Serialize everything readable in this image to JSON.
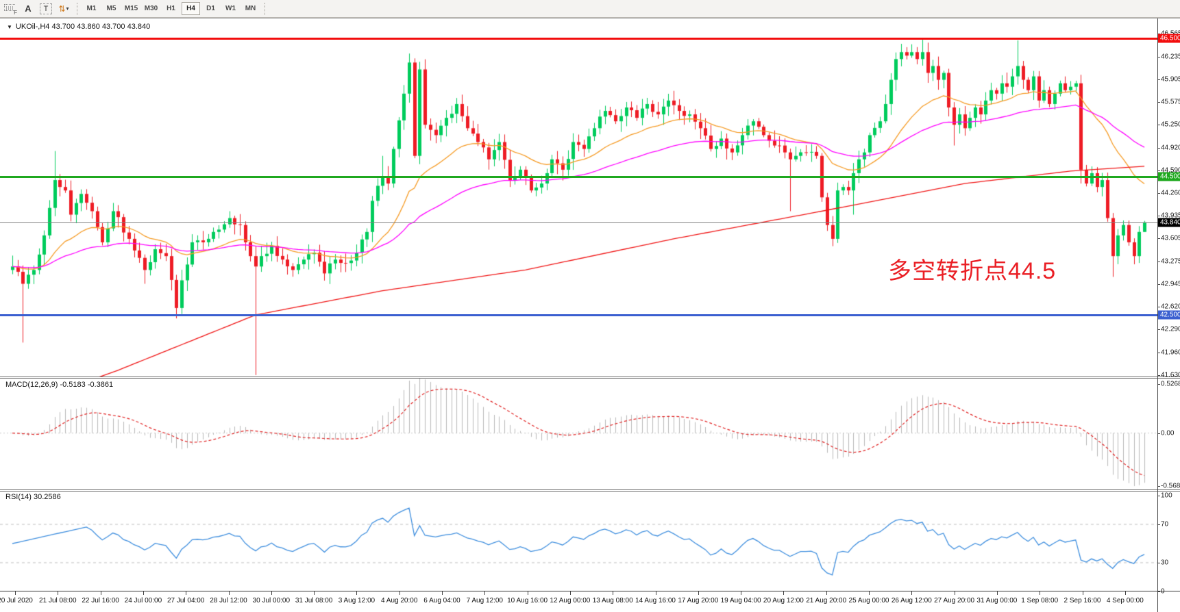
{
  "toolbar": {
    "grip_label": "F",
    "annotate_a_label": "A",
    "annotate_t_label": "T",
    "arrows_icon": "⇅",
    "caret": "▾",
    "timeframes": [
      "M1",
      "M5",
      "M15",
      "M30",
      "H1",
      "H4",
      "D1",
      "W1",
      "MN"
    ],
    "active_timeframe": "H4"
  },
  "symbol_line": {
    "triangle": "▼",
    "text": "UKOil-,H4  43.700 43.860 43.700 43.840"
  },
  "annotation": {
    "text": "多空转折点44.5",
    "color": "#EA1F25"
  },
  "macd_panel": {
    "title": "MACD(12,26,9) -0.5183 -0.3861"
  },
  "rsi_panel": {
    "title": "RSI(14) 30.2586"
  },
  "chart_data": {
    "type": "candlestick",
    "symbol": "UKOil-",
    "timeframe": "H4",
    "bars": 215,
    "ylim": [
      41.63,
      46.75
    ],
    "up_color": "#00CC5C",
    "down_color": "#EE1C25",
    "last_ohlc": {
      "open": 43.7,
      "high": 43.86,
      "low": 43.7,
      "close": 43.84
    },
    "price_axis_ticks": [
      "46.565",
      "46.235",
      "45.905",
      "45.575",
      "45.250",
      "44.920",
      "44.590",
      "44.260",
      "43.935",
      "43.605",
      "43.275",
      "42.945",
      "42.620",
      "42.290",
      "41.960",
      "41.630"
    ],
    "levels": [
      {
        "name": "resistance",
        "label": "46.500",
        "price": 46.5,
        "color": "#F20D0D",
        "thickness": 3
      },
      {
        "name": "pivot",
        "label": "44.500",
        "price": 44.5,
        "color": "#1FA81F",
        "thickness": 3
      },
      {
        "name": "support",
        "label": "42.500",
        "price": 42.5,
        "color": "#3A5FD0",
        "thickness": 3
      }
    ],
    "current_price": {
      "label": "43.840",
      "price": 43.84,
      "line_color": "#808080",
      "tag_bg": "#000000"
    },
    "moving_averages": [
      {
        "name": "ma-fast",
        "type": "ema",
        "period": 21,
        "color": "#F59A23"
      },
      {
        "name": "ma-medium",
        "type": "ema",
        "period": 55,
        "color": "#FF00FF"
      },
      {
        "name": "ma-slow",
        "type": "anchors",
        "color": "#F01515",
        "anchors": [
          [
            0,
            41.15
          ],
          [
            20,
            41.7
          ],
          [
            46,
            42.5
          ],
          [
            70,
            42.85
          ],
          [
            97,
            43.15
          ],
          [
            125,
            43.6
          ],
          [
            153,
            44.0
          ],
          [
            180,
            44.4
          ],
          [
            200,
            44.58
          ],
          [
            214,
            44.65
          ]
        ]
      }
    ],
    "price_anchors": [
      [
        0,
        43.2
      ],
      [
        2,
        42.95
      ],
      [
        4,
        43.15
      ],
      [
        6,
        43.65
      ],
      [
        8,
        44.45
      ],
      [
        10,
        44.3
      ],
      [
        11,
        43.95
      ],
      [
        13,
        44.25
      ],
      [
        15,
        44.0
      ],
      [
        17,
        43.55
      ],
      [
        19,
        44.0
      ],
      [
        22,
        43.6
      ],
      [
        25,
        43.15
      ],
      [
        27,
        43.45
      ],
      [
        29,
        43.35
      ],
      [
        31,
        42.6
      ],
      [
        32,
        43.0
      ],
      [
        34,
        43.55
      ],
      [
        36,
        43.55
      ],
      [
        38,
        43.7
      ],
      [
        41,
        43.9
      ],
      [
        43,
        43.8
      ],
      [
        44,
        43.55
      ],
      [
        45,
        43.35
      ],
      [
        46,
        43.2
      ],
      [
        47,
        43.35
      ],
      [
        49,
        43.5
      ],
      [
        51,
        43.3
      ],
      [
        53,
        43.15
      ],
      [
        55,
        43.3
      ],
      [
        57,
        43.4
      ],
      [
        59,
        43.1
      ],
      [
        61,
        43.3
      ],
      [
        63,
        43.25
      ],
      [
        65,
        43.4
      ],
      [
        67,
        43.7
      ],
      [
        68,
        44.15
      ],
      [
        70,
        44.5
      ],
      [
        71,
        44.4
      ],
      [
        72,
        44.9
      ],
      [
        74,
        45.7
      ],
      [
        75,
        46.15
      ],
      [
        76,
        44.8
      ],
      [
        77,
        46.05
      ],
      [
        78,
        45.25
      ],
      [
        80,
        45.1
      ],
      [
        82,
        45.35
      ],
      [
        84,
        45.55
      ],
      [
        86,
        45.2
      ],
      [
        88,
        45.0
      ],
      [
        90,
        44.75
      ],
      [
        92,
        45.0
      ],
      [
        94,
        44.45
      ],
      [
        96,
        44.6
      ],
      [
        98,
        44.3
      ],
      [
        100,
        44.4
      ],
      [
        102,
        44.75
      ],
      [
        104,
        44.6
      ],
      [
        106,
        45.0
      ],
      [
        108,
        44.9
      ],
      [
        110,
        45.2
      ],
      [
        112,
        45.45
      ],
      [
        114,
        45.3
      ],
      [
        116,
        45.5
      ],
      [
        118,
        45.35
      ],
      [
        120,
        45.55
      ],
      [
        122,
        45.4
      ],
      [
        124,
        45.6
      ],
      [
        126,
        45.45
      ],
      [
        128,
        45.4
      ],
      [
        130,
        45.2
      ],
      [
        132,
        44.9
      ],
      [
        134,
        45.05
      ],
      [
        136,
        44.85
      ],
      [
        138,
        45.1
      ],
      [
        140,
        45.3
      ],
      [
        142,
        45.1
      ],
      [
        144,
        44.95
      ],
      [
        146,
        44.85
      ],
      [
        147,
        44.75
      ],
      [
        148,
        44.8
      ],
      [
        150,
        44.85
      ],
      [
        152,
        44.8
      ],
      [
        153,
        44.2
      ],
      [
        154,
        43.8
      ],
      [
        155,
        43.6
      ],
      [
        156,
        44.3
      ],
      [
        157,
        44.35
      ],
      [
        158,
        44.3
      ],
      [
        159,
        44.55
      ],
      [
        160,
        44.75
      ],
      [
        161,
        44.85
      ],
      [
        162,
        45.1
      ],
      [
        164,
        45.3
      ],
      [
        165,
        45.55
      ],
      [
        166,
        45.9
      ],
      [
        167,
        46.2
      ],
      [
        168,
        46.3
      ],
      [
        169,
        46.25
      ],
      [
        170,
        46.3
      ],
      [
        171,
        46.2
      ],
      [
        172,
        46.3
      ],
      [
        173,
        46.0
      ],
      [
        174,
        46.1
      ],
      [
        175,
        45.9
      ],
      [
        176,
        46.0
      ],
      [
        177,
        45.5
      ],
      [
        178,
        45.25
      ],
      [
        179,
        45.4
      ],
      [
        180,
        45.2
      ],
      [
        181,
        45.35
      ],
      [
        182,
        45.5
      ],
      [
        183,
        45.4
      ],
      [
        184,
        45.6
      ],
      [
        185,
        45.75
      ],
      [
        186,
        45.7
      ],
      [
        187,
        45.85
      ],
      [
        188,
        45.8
      ],
      [
        189,
        45.95
      ],
      [
        190,
        46.1
      ],
      [
        191,
        45.9
      ],
      [
        192,
        45.75
      ],
      [
        193,
        45.95
      ],
      [
        194,
        45.6
      ],
      [
        195,
        45.75
      ],
      [
        196,
        45.55
      ],
      [
        197,
        45.7
      ],
      [
        198,
        45.85
      ],
      [
        199,
        45.75
      ],
      [
        200,
        45.8
      ],
      [
        201,
        45.85
      ],
      [
        202,
        44.6
      ],
      [
        203,
        44.4
      ],
      [
        204,
        44.55
      ],
      [
        205,
        44.35
      ],
      [
        206,
        44.45
      ],
      [
        207,
        43.9
      ],
      [
        208,
        43.35
      ],
      [
        209,
        43.65
      ],
      [
        210,
        43.8
      ],
      [
        211,
        43.55
      ],
      [
        212,
        43.35
      ],
      [
        213,
        43.7
      ],
      [
        214,
        43.84
      ]
    ],
    "extra_wicks": {
      "2": [
        null,
        42.1
      ],
      "8": [
        44.87,
        null
      ],
      "25": [
        null,
        42.95
      ],
      "31": [
        null,
        42.45
      ],
      "46": [
        null,
        41.63
      ],
      "70": [
        44.8,
        null
      ],
      "75": [
        46.28,
        null
      ],
      "147": [
        null,
        44.0
      ],
      "159": [
        null,
        43.95
      ],
      "172": [
        46.48,
        null
      ],
      "178": [
        null,
        44.95
      ],
      "190": [
        46.47,
        null
      ],
      "202": [
        null,
        44.4
      ],
      "208": [
        null,
        43.05
      ]
    },
    "time_axis_labels": [
      "20 Jul 2020",
      "21 Jul 08:00",
      "22 Jul 16:00",
      "24 Jul 00:00",
      "27 Jul 04:00",
      "28 Jul 12:00",
      "30 Jul 00:00",
      "31 Jul 08:00",
      "3 Aug 12:00",
      "4 Aug 20:00",
      "6 Aug 04:00",
      "7 Aug 12:00",
      "10 Aug 16:00",
      "12 Aug 00:00",
      "13 Aug 08:00",
      "14 Aug 16:00",
      "17 Aug 20:00",
      "19 Aug 04:00",
      "20 Aug 12:00",
      "21 Aug 20:00",
      "25 Aug 00:00",
      "26 Aug 12:00",
      "27 Aug 20:00",
      "31 Aug 00:00",
      "1 Sep 08:00",
      "2 Sep 16:00",
      "4 Sep 00:00"
    ],
    "macd": {
      "fast": 12,
      "slow": 26,
      "signal": 9,
      "value_main": -0.5183,
      "value_signal": -0.3861,
      "ylim": [
        -0.5681,
        0.5268
      ],
      "ticks": [
        {
          "label": "0.5268",
          "v": 0.5268
        },
        {
          "label": "0.00",
          "v": 0
        },
        {
          "label": "-0.5681",
          "v": -0.5681
        }
      ],
      "hist_color": "#B8B8B8",
      "signal_color": "#E02020"
    },
    "rsi": {
      "period": 14,
      "value": 30.2586,
      "ticks": [
        {
          "label": "100",
          "v": 100
        },
        {
          "label": "70",
          "v": 70
        },
        {
          "label": "30",
          "v": 30
        },
        {
          "label": "0",
          "v": 0
        }
      ],
      "levels": [
        70,
        30
      ],
      "line_color": "#3E8EDE",
      "level_color": "#BDBDBD"
    }
  }
}
